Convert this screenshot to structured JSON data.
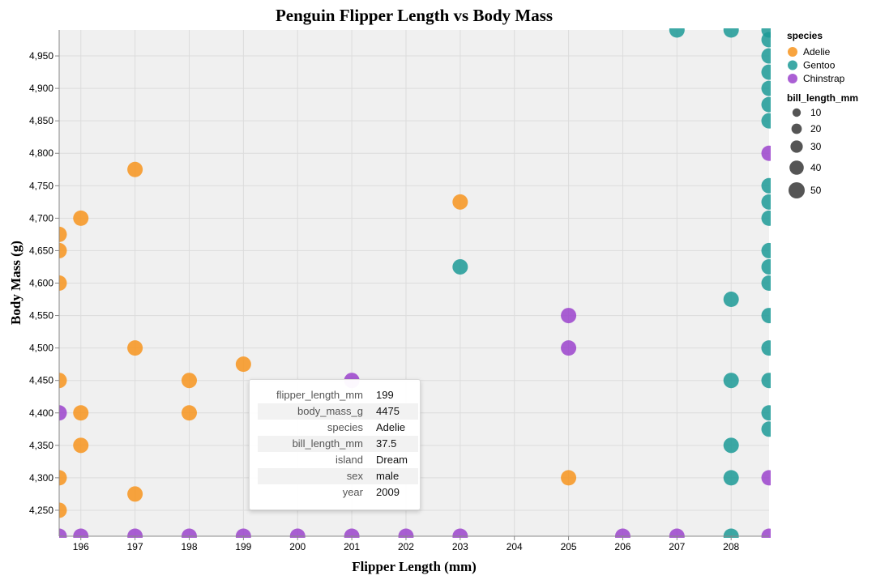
{
  "chart_data": {
    "type": "scatter",
    "title": "Penguin Flipper Length vs Body Mass",
    "xlabel": "Flipper Length (mm)",
    "ylabel": "Body Mass (g)",
    "xlim": [
      195.6,
      208.7
    ],
    "ylim": [
      4210,
      4990
    ],
    "x_ticks": [
      "196",
      "197",
      "198",
      "199",
      "200",
      "201",
      "202",
      "203",
      "204",
      "205",
      "206",
      "207",
      "208"
    ],
    "y_ticks": [
      "4,250",
      "4,300",
      "4,350",
      "4,400",
      "4,450",
      "4,500",
      "4,550",
      "4,600",
      "4,650",
      "4,700",
      "4,750",
      "4,800",
      "4,850",
      "4,900",
      "4,950"
    ],
    "x_tick_values": [
      196,
      197,
      198,
      199,
      200,
      201,
      202,
      203,
      204,
      205,
      206,
      207,
      208
    ],
    "y_tick_values": [
      4250,
      4300,
      4350,
      4400,
      4450,
      4500,
      4550,
      4600,
      4650,
      4700,
      4750,
      4800,
      4850,
      4900,
      4950
    ],
    "grid": true,
    "legend_placement": "right",
    "colors": {
      "Adelie": "#f7941d",
      "Gentoo": "#1c9a96",
      "Chinstrap": "#9b43cc"
    },
    "legend": {
      "color_title": "species",
      "species": [
        "Adelie",
        "Gentoo",
        "Chinstrap"
      ],
      "size_title": "bill_length_mm",
      "sizes": [
        "10",
        "20",
        "30",
        "40",
        "50"
      ],
      "size_values": [
        10,
        20,
        30,
        40,
        50
      ]
    },
    "series": [
      {
        "name": "Adelie",
        "points": [
          [
            197,
            4775,
            39
          ],
          [
            196,
            4700,
            39
          ],
          [
            195.6,
            4675,
            39
          ],
          [
            195.6,
            4650,
            39
          ],
          [
            195.6,
            4600,
            39
          ],
          [
            203,
            4725,
            39
          ],
          [
            197,
            4500,
            39
          ],
          [
            199,
            4475,
            37.5
          ],
          [
            195.6,
            4450,
            39
          ],
          [
            198,
            4450,
            39
          ],
          [
            196,
            4400,
            39
          ],
          [
            198,
            4400,
            38
          ],
          [
            196,
            4350,
            39
          ],
          [
            195.6,
            4300,
            39
          ],
          [
            205,
            4300,
            39
          ],
          [
            197,
            4275,
            39
          ],
          [
            195.6,
            4250,
            39
          ]
        ]
      },
      {
        "name": "Gentoo",
        "points": [
          [
            207,
            4990,
            47
          ],
          [
            208,
            4990,
            47
          ],
          [
            208.7,
            4990,
            47
          ],
          [
            208.7,
            4975,
            47
          ],
          [
            208.7,
            4950,
            47
          ],
          [
            208.7,
            4925,
            47
          ],
          [
            208.7,
            4900,
            47
          ],
          [
            208.7,
            4875,
            47
          ],
          [
            208.7,
            4850,
            47
          ],
          [
            208.7,
            4750,
            47
          ],
          [
            208.7,
            4725,
            47
          ],
          [
            208.7,
            4700,
            47
          ],
          [
            208.7,
            4650,
            47
          ],
          [
            208.7,
            4625,
            47
          ],
          [
            208.7,
            4600,
            47
          ],
          [
            203,
            4625,
            47
          ],
          [
            208,
            4575,
            47
          ],
          [
            208.7,
            4550,
            47
          ],
          [
            208.7,
            4500,
            47
          ],
          [
            208,
            4450,
            47
          ],
          [
            208.7,
            4450,
            47
          ],
          [
            208.7,
            4400,
            47
          ],
          [
            208.7,
            4375,
            47
          ],
          [
            208,
            4350,
            47
          ],
          [
            208,
            4300,
            47
          ],
          [
            208,
            4210,
            47
          ]
        ]
      },
      {
        "name": "Chinstrap",
        "points": [
          [
            208.7,
            4800,
            48
          ],
          [
            205,
            4550,
            50
          ],
          [
            205,
            4500,
            50
          ],
          [
            201,
            4450,
            46
          ],
          [
            195.6,
            4400,
            46
          ],
          [
            208.7,
            4300,
            48
          ],
          [
            195.6,
            4210,
            46
          ],
          [
            196,
            4210,
            46
          ],
          [
            197,
            4210,
            46
          ],
          [
            198,
            4210,
            46
          ],
          [
            199,
            4210,
            46
          ],
          [
            200,
            4210,
            46
          ],
          [
            201,
            4210,
            46
          ],
          [
            202,
            4210,
            46
          ],
          [
            203,
            4210,
            46
          ],
          [
            206,
            4210,
            46
          ],
          [
            207,
            4210,
            46
          ],
          [
            208.7,
            4210,
            46
          ]
        ]
      }
    ]
  },
  "tooltip": {
    "rows": [
      {
        "key": "flipper_length_mm",
        "value": "199"
      },
      {
        "key": "body_mass_g",
        "value": "4475"
      },
      {
        "key": "species",
        "value": "Adelie"
      },
      {
        "key": "bill_length_mm",
        "value": "37.5"
      },
      {
        "key": "island",
        "value": "Dream"
      },
      {
        "key": "sex",
        "value": "male"
      },
      {
        "key": "year",
        "value": "2009"
      }
    ]
  }
}
